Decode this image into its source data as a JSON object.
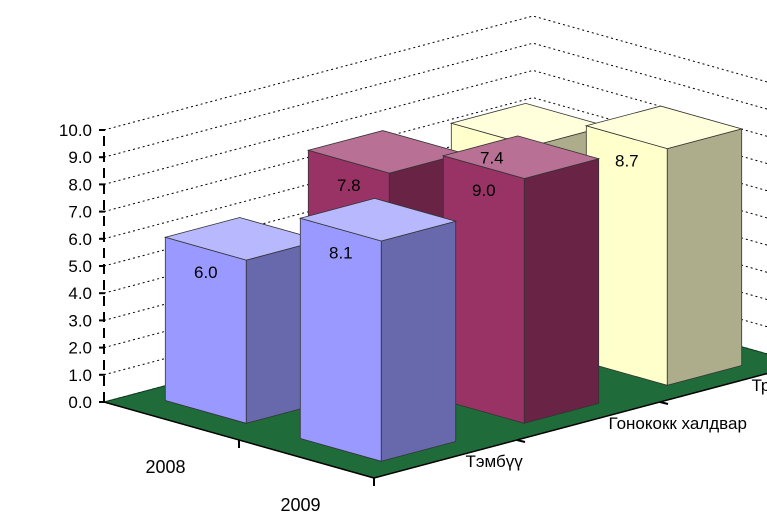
{
  "chart_data": {
    "type": "bar",
    "variant": "3d-column",
    "title": "",
    "xlabel": "",
    "ylabel": "",
    "ylim": [
      0,
      10
    ],
    "y_ticks": [
      "0.0",
      "1.0",
      "2.0",
      "3.0",
      "4.0",
      "5.0",
      "6.0",
      "7.0",
      "8.0",
      "9.0",
      "10.0"
    ],
    "categories": [
      "2008",
      "2009"
    ],
    "series": [
      {
        "name": "Тэмбүү",
        "values": [
          6.0,
          8.1
        ],
        "data_labels": [
          "6.0",
          "8.1"
        ],
        "color": "#9999ff"
      },
      {
        "name": "Гонококк халдвар",
        "values": [
          7.8,
          9.0
        ],
        "data_labels": [
          "7.8",
          "9.0"
        ],
        "color": "#993366"
      },
      {
        "name": "Трихомониаз",
        "values": [
          7.4,
          8.7
        ],
        "data_labels": [
          "7.4",
          "8.7"
        ],
        "color": "#ffffcc"
      }
    ],
    "grid": true,
    "floor_color": "#1f6b3a",
    "legend": "none"
  }
}
